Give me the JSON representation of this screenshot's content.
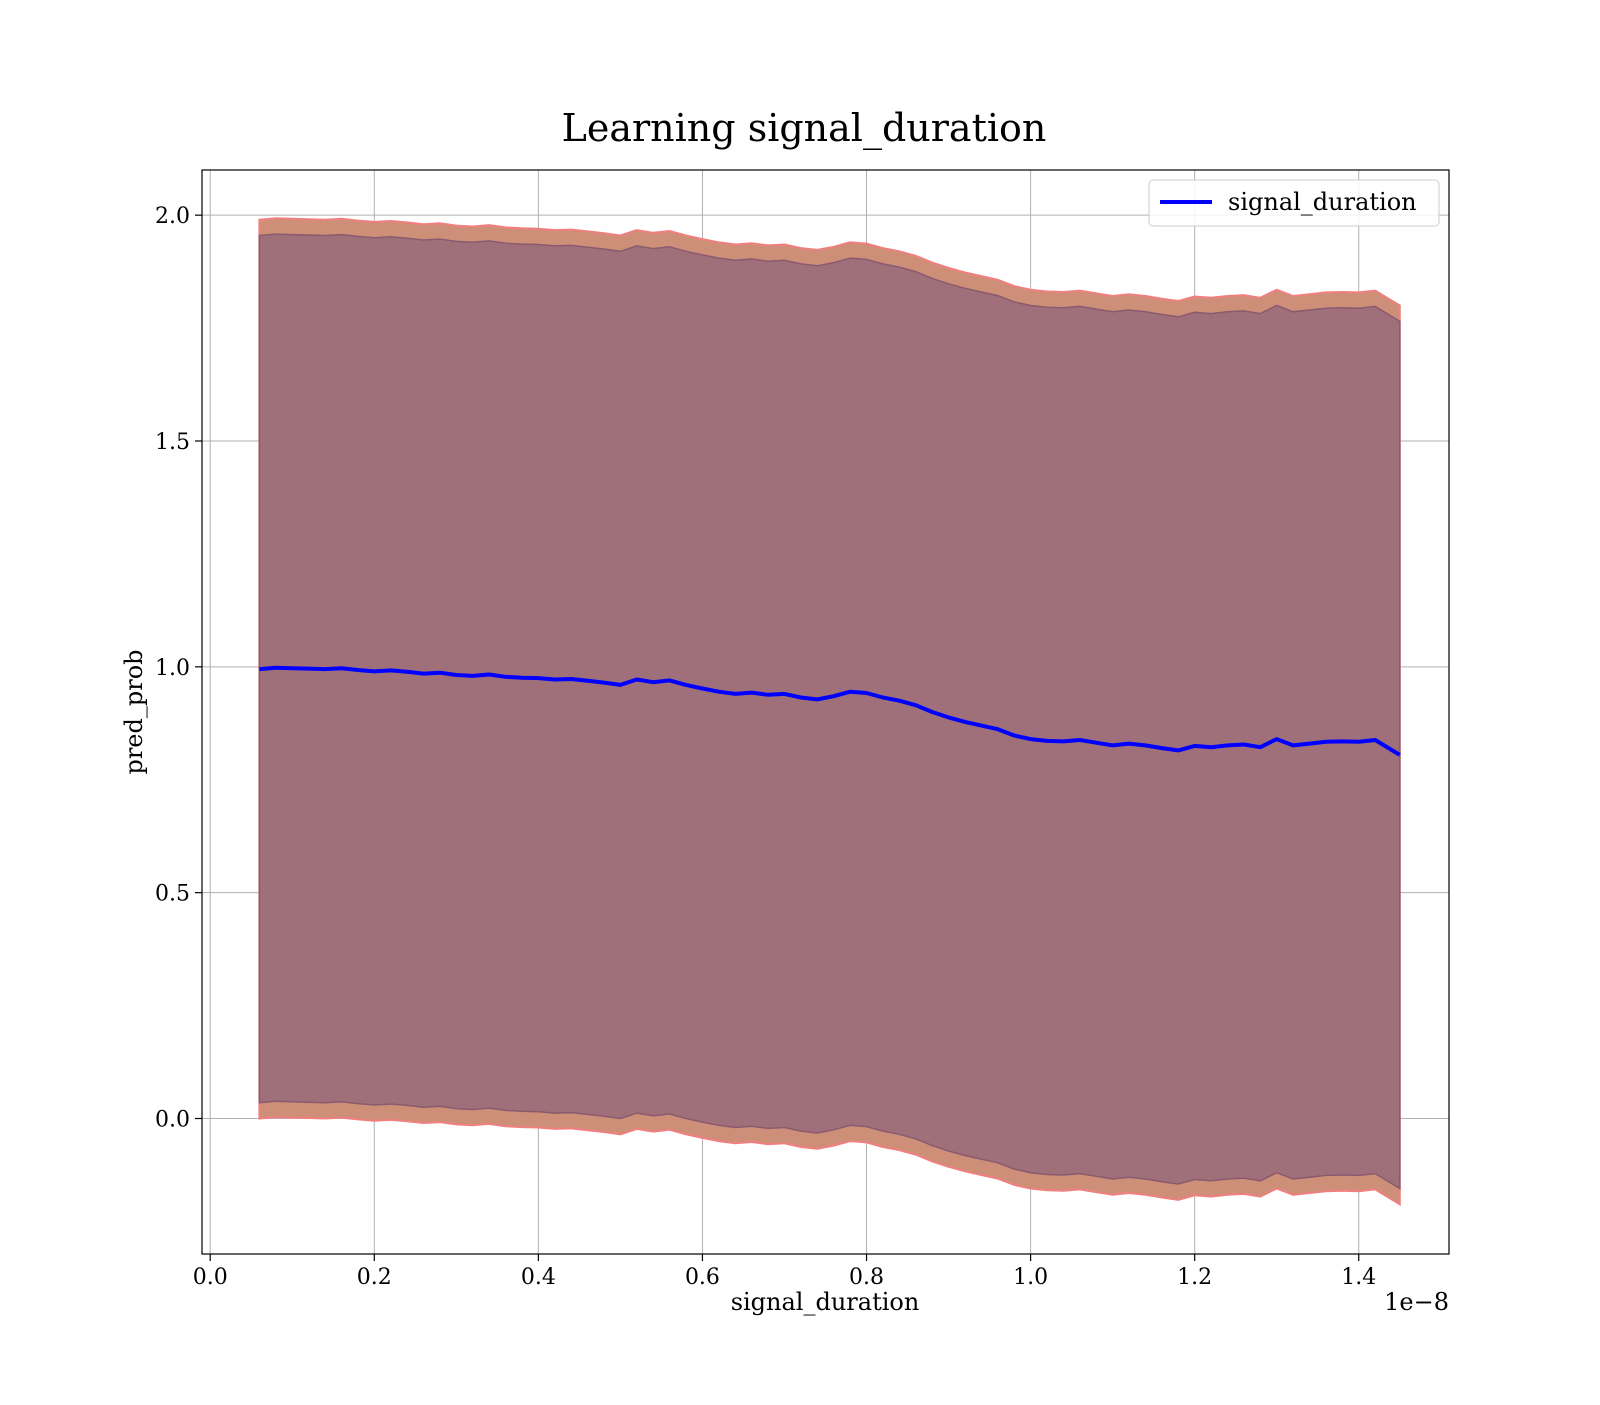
{
  "chart_data": {
    "type": "line",
    "title": "Learning signal_duration",
    "xlabel": "signal_duration",
    "ylabel": "pred_prob",
    "x_offset_text": "1e−8",
    "xlim": [
      -0.01,
      1.51
    ],
    "ylim": [
      -0.3,
      2.1
    ],
    "x_ticks": [
      0.0,
      0.2,
      0.4,
      0.6,
      0.8,
      1.0,
      1.2,
      1.4
    ],
    "x_tick_labels": [
      "0.0",
      "0.2",
      "0.4",
      "0.6",
      "0.8",
      "1.0",
      "1.2",
      "1.4"
    ],
    "y_ticks": [
      0.0,
      0.5,
      1.0,
      1.5,
      2.0
    ],
    "y_tick_labels": [
      "0.0",
      "0.5",
      "1.0",
      "1.5",
      "2.0"
    ],
    "grid": true,
    "legend_position": "top-right",
    "colors": {
      "line": "#0000ff",
      "band_outer": "#cd8f78",
      "band_outer_edge": "#f08080",
      "band_inner": "#a0707a",
      "band_inner_edge": "#8a5a6e"
    },
    "series": [
      {
        "name": "signal_duration",
        "x": [
          0.06,
          0.08,
          0.1,
          0.12,
          0.14,
          0.16,
          0.18,
          0.2,
          0.22,
          0.24,
          0.26,
          0.28,
          0.3,
          0.32,
          0.34,
          0.36,
          0.38,
          0.4,
          0.42,
          0.44,
          0.46,
          0.48,
          0.5,
          0.52,
          0.54,
          0.56,
          0.58,
          0.6,
          0.62,
          0.64,
          0.66,
          0.68,
          0.7,
          0.72,
          0.74,
          0.76,
          0.78,
          0.8,
          0.82,
          0.84,
          0.86,
          0.88,
          0.9,
          0.92,
          0.94,
          0.96,
          0.98,
          1.0,
          1.02,
          1.04,
          1.06,
          1.08,
          1.1,
          1.12,
          1.14,
          1.16,
          1.18,
          1.2,
          1.22,
          1.24,
          1.26,
          1.28,
          1.3,
          1.32,
          1.34,
          1.36,
          1.38,
          1.4,
          1.42,
          1.45
        ],
        "y": [
          0.995,
          0.998,
          0.997,
          0.996,
          0.995,
          0.997,
          0.993,
          0.99,
          0.992,
          0.989,
          0.985,
          0.987,
          0.982,
          0.98,
          0.983,
          0.978,
          0.976,
          0.975,
          0.972,
          0.973,
          0.969,
          0.965,
          0.96,
          0.972,
          0.966,
          0.97,
          0.96,
          0.952,
          0.945,
          0.94,
          0.943,
          0.938,
          0.94,
          0.932,
          0.928,
          0.935,
          0.945,
          0.942,
          0.932,
          0.925,
          0.915,
          0.9,
          0.888,
          0.878,
          0.87,
          0.862,
          0.848,
          0.84,
          0.836,
          0.835,
          0.838,
          0.832,
          0.826,
          0.83,
          0.826,
          0.82,
          0.815,
          0.825,
          0.822,
          0.826,
          0.828,
          0.822,
          0.84,
          0.826,
          0.83,
          0.834,
          0.835,
          0.834,
          0.838,
          0.805
        ],
        "band_inner_upper": [
          1.955,
          1.958,
          1.957,
          1.956,
          1.955,
          1.957,
          1.953,
          1.95,
          1.952,
          1.949,
          1.945,
          1.947,
          1.942,
          1.94,
          1.943,
          1.938,
          1.936,
          1.935,
          1.932,
          1.933,
          1.929,
          1.925,
          1.92,
          1.932,
          1.926,
          1.93,
          1.92,
          1.912,
          1.905,
          1.9,
          1.903,
          1.898,
          1.9,
          1.892,
          1.888,
          1.895,
          1.905,
          1.902,
          1.892,
          1.885,
          1.875,
          1.86,
          1.848,
          1.838,
          1.83,
          1.822,
          1.808,
          1.8,
          1.796,
          1.795,
          1.798,
          1.792,
          1.786,
          1.79,
          1.786,
          1.78,
          1.775,
          1.785,
          1.782,
          1.786,
          1.788,
          1.782,
          1.8,
          1.786,
          1.79,
          1.794,
          1.795,
          1.794,
          1.798,
          1.765
        ],
        "band_inner_lower": [
          0.035,
          0.038,
          0.037,
          0.036,
          0.035,
          0.037,
          0.033,
          0.03,
          0.032,
          0.029,
          0.025,
          0.027,
          0.022,
          0.02,
          0.023,
          0.018,
          0.016,
          0.015,
          0.012,
          0.013,
          0.009,
          0.005,
          0.0,
          0.012,
          0.006,
          0.01,
          0.0,
          -0.008,
          -0.015,
          -0.02,
          -0.017,
          -0.022,
          -0.02,
          -0.028,
          -0.032,
          -0.025,
          -0.015,
          -0.018,
          -0.028,
          -0.035,
          -0.045,
          -0.06,
          -0.072,
          -0.082,
          -0.09,
          -0.098,
          -0.112,
          -0.12,
          -0.124,
          -0.125,
          -0.122,
          -0.128,
          -0.134,
          -0.13,
          -0.134,
          -0.14,
          -0.145,
          -0.135,
          -0.138,
          -0.134,
          -0.132,
          -0.138,
          -0.12,
          -0.134,
          -0.13,
          -0.126,
          -0.125,
          -0.126,
          -0.122,
          -0.155
        ],
        "band_outer_upper": [
          1.99,
          1.993,
          1.992,
          1.991,
          1.99,
          1.992,
          1.988,
          1.985,
          1.987,
          1.984,
          1.98,
          1.982,
          1.977,
          1.975,
          1.978,
          1.973,
          1.971,
          1.97,
          1.967,
          1.968,
          1.964,
          1.96,
          1.955,
          1.967,
          1.961,
          1.965,
          1.955,
          1.947,
          1.94,
          1.935,
          1.938,
          1.933,
          1.935,
          1.927,
          1.923,
          1.93,
          1.94,
          1.937,
          1.927,
          1.92,
          1.91,
          1.895,
          1.883,
          1.873,
          1.865,
          1.857,
          1.843,
          1.835,
          1.831,
          1.83,
          1.833,
          1.827,
          1.821,
          1.825,
          1.821,
          1.815,
          1.81,
          1.82,
          1.817,
          1.821,
          1.823,
          1.817,
          1.835,
          1.821,
          1.825,
          1.829,
          1.83,
          1.829,
          1.833,
          1.8
        ],
        "band_outer_lower": [
          0.0,
          0.003,
          0.002,
          0.001,
          0.0,
          0.002,
          -0.002,
          -0.005,
          -0.003,
          -0.006,
          -0.01,
          -0.008,
          -0.013,
          -0.015,
          -0.012,
          -0.017,
          -0.019,
          -0.02,
          -0.023,
          -0.022,
          -0.026,
          -0.03,
          -0.035,
          -0.023,
          -0.029,
          -0.025,
          -0.035,
          -0.043,
          -0.05,
          -0.055,
          -0.052,
          -0.057,
          -0.055,
          -0.063,
          -0.067,
          -0.06,
          -0.05,
          -0.053,
          -0.063,
          -0.07,
          -0.08,
          -0.095,
          -0.107,
          -0.117,
          -0.125,
          -0.133,
          -0.147,
          -0.155,
          -0.159,
          -0.16,
          -0.157,
          -0.163,
          -0.169,
          -0.165,
          -0.169,
          -0.175,
          -0.18,
          -0.17,
          -0.173,
          -0.169,
          -0.167,
          -0.173,
          -0.155,
          -0.169,
          -0.165,
          -0.161,
          -0.16,
          -0.161,
          -0.157,
          -0.19
        ]
      }
    ]
  }
}
